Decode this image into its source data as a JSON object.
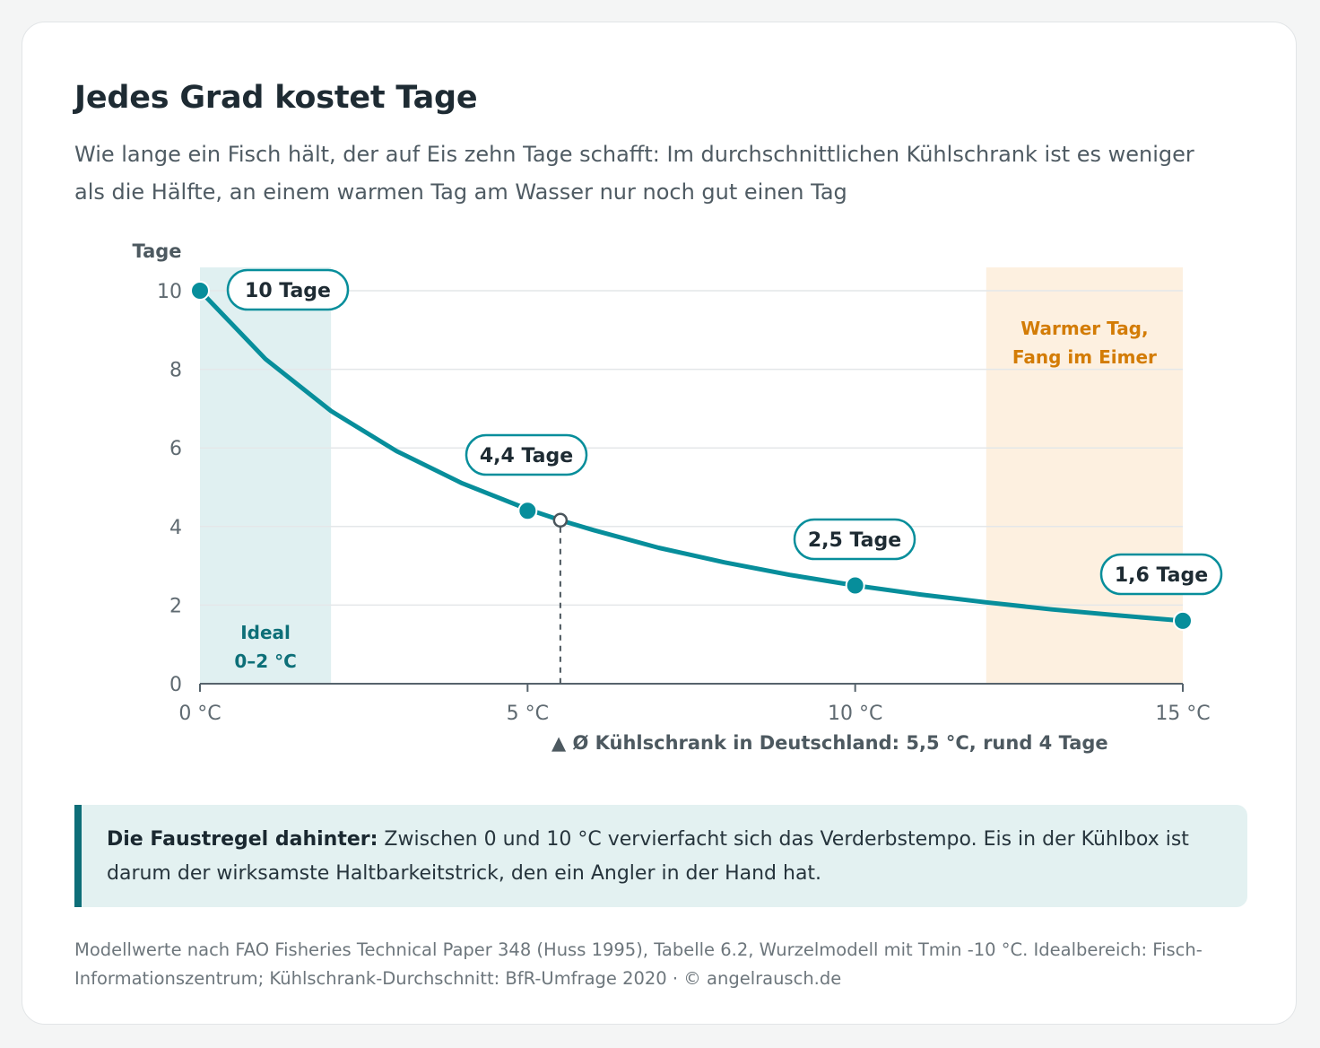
{
  "title": "Jedes Grad kostet Tage",
  "subtitle": "Wie lange ein Fisch hält, der auf Eis zehn Tage schafft: Im durchschnittlichen Kühlschrank ist es weniger als die Hälfte, an einem warmen Tag am Wasser nur noch gut einen Tag",
  "note": {
    "lead": "Die Faustregel dahinter:",
    "text": " Zwischen 0 und 10 °C vervierfacht sich das Verderbstempo. Eis in der Kühlbox ist darum der wirksamste Haltbarkeitstrick, den ein Angler in der Hand hat."
  },
  "source": "Modellwerte nach FAO Fisheries Technical Paper 348 (Huss 1995), Tabelle 6.2, Wurzelmodell mit Tmin -10 °C. Idealbereich: Fisch-Informationszentrum; Kühlschrank-Durchschnitt: BfR-Umfrage 2020 · © angelrausch.de",
  "colors": {
    "line": "#078e9b",
    "ideal_band": "#e0f0f1",
    "ideal_text": "#0d6f78",
    "warm_band": "#fdf0e0",
    "warm_text": "#d37c06",
    "grid": "#e4e7e9",
    "axis": "#56636c"
  },
  "chart_data": {
    "type": "line",
    "title": "Jedes Grad kostet Tage",
    "ylabel": "Tage",
    "xlabel": "",
    "xlim": [
      0,
      15
    ],
    "ylim": [
      0,
      10
    ],
    "x_ticks": [
      {
        "value": 0,
        "label": "0 °C"
      },
      {
        "value": 5,
        "label": "5 °C"
      },
      {
        "value": 10,
        "label": "10 °C"
      },
      {
        "value": 15,
        "label": "15 °C"
      }
    ],
    "y_ticks": [
      0,
      2,
      4,
      6,
      8,
      10
    ],
    "grid": "horizontal",
    "series": [
      {
        "x": [
          0,
          1,
          2,
          3,
          4,
          5,
          5.5,
          6,
          7,
          8,
          9,
          10,
          11,
          12,
          13,
          14,
          15
        ],
        "values": [
          10,
          8.26,
          6.94,
          5.92,
          5.1,
          4.44,
          4.16,
          3.91,
          3.46,
          3.09,
          2.77,
          2.5,
          2.27,
          2.07,
          1.89,
          1.74,
          1.6
        ]
      }
    ],
    "labeled_points": [
      {
        "x": 0,
        "y": 10,
        "label": "10 Tage"
      },
      {
        "x": 5,
        "y": 4.4,
        "label": "4,4 Tage"
      },
      {
        "x": 10,
        "y": 2.5,
        "label": "2,5 Tage"
      },
      {
        "x": 15,
        "y": 1.6,
        "label": "1,6 Tage"
      }
    ],
    "bands": [
      {
        "from": 0,
        "to": 2,
        "label_line1": "Ideal",
        "label_line2": "0–2 °C",
        "kind": "ideal"
      },
      {
        "from": 12,
        "to": 15,
        "label_line1": "Warmer Tag,",
        "label_line2": "Fang im Eimer",
        "kind": "warm"
      }
    ],
    "marker": {
      "x": 5.5,
      "y": 4.16,
      "label": "▲ Ø Kühlschrank in Deutschland: 5,5 °C, rund 4 Tage"
    }
  }
}
